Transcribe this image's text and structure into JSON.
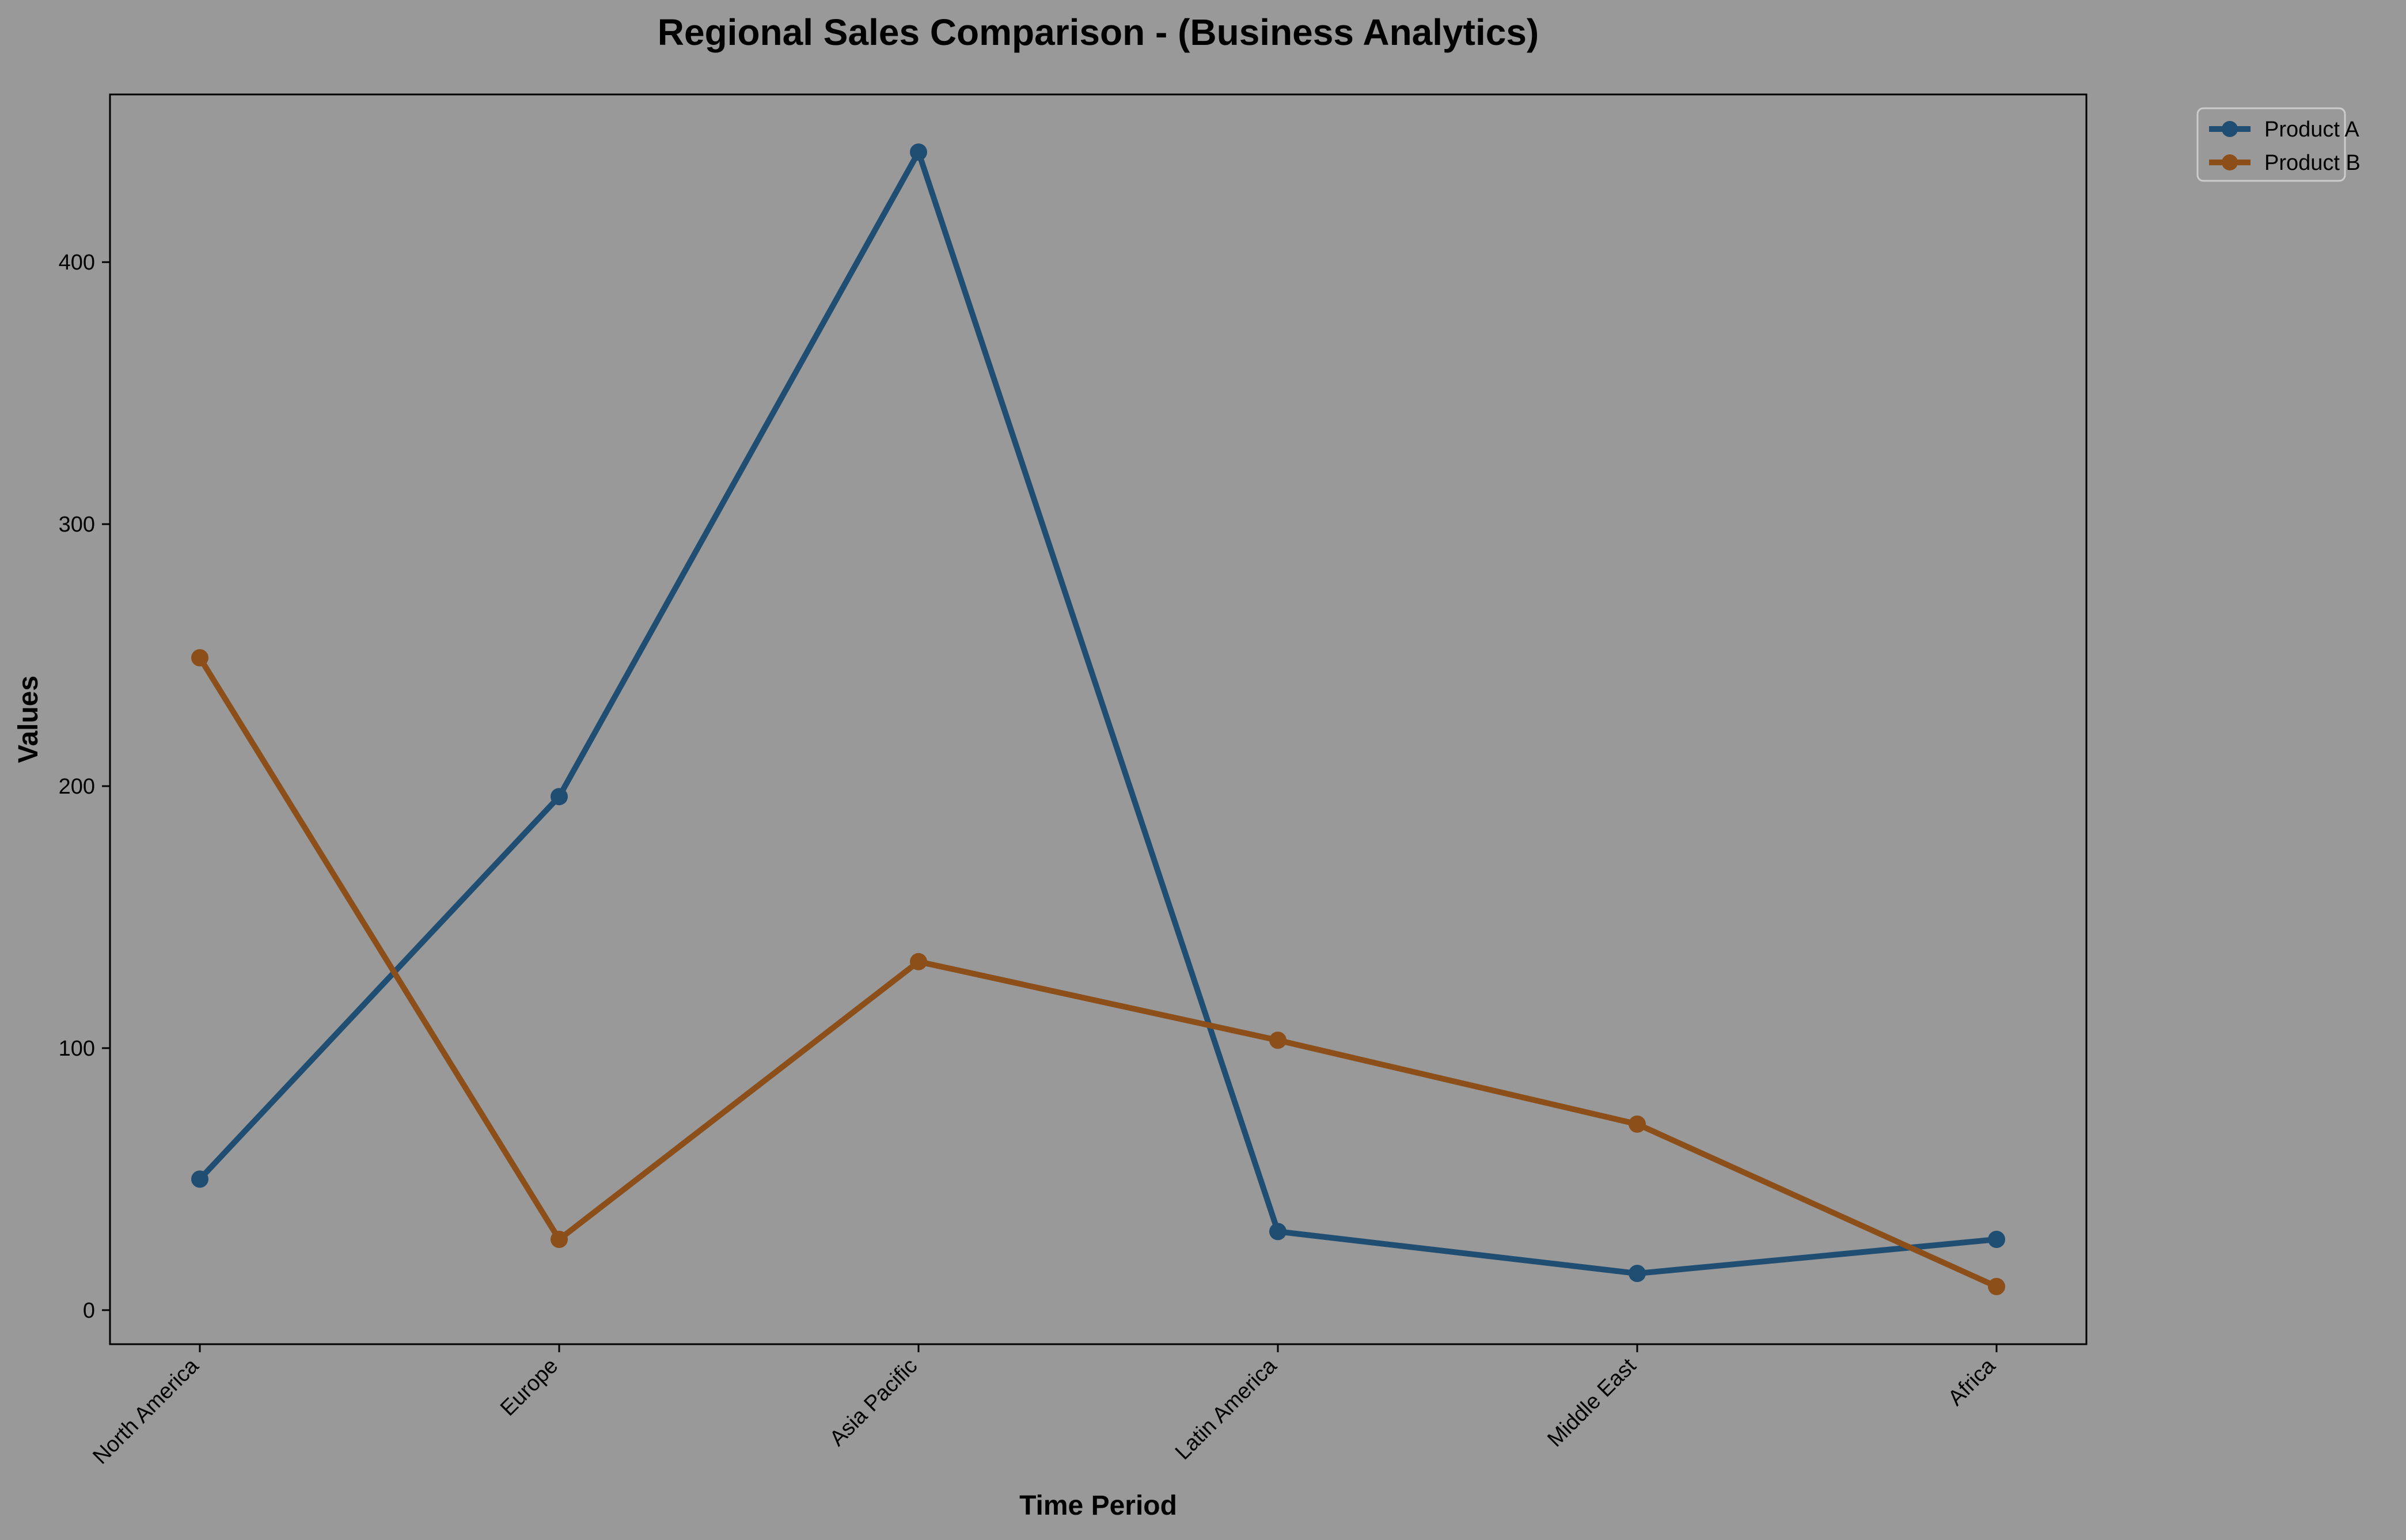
{
  "chart_data": {
    "type": "line",
    "title": "Regional Sales Comparison - (Business Analytics)",
    "xlabel": "Time Period",
    "ylabel": "Values",
    "categories": [
      "North America",
      "Europe",
      "Asia Pacific",
      "Latin America",
      "Middle East",
      "Africa"
    ],
    "series": [
      {
        "name": "Product A",
        "color": "#1f4e72",
        "values": [
          50,
          196,
          442,
          30,
          14,
          27
        ]
      },
      {
        "name": "Product B",
        "color": "#8c4f1a",
        "values": [
          249,
          27,
          133,
          103,
          71,
          9
        ]
      }
    ],
    "ylim": [
      -13,
      464
    ],
    "yticks": [
      0,
      100,
      200,
      300,
      400
    ],
    "grid": false,
    "legend_position": "upper-right-outside",
    "background_color": "#999999",
    "plot_background_color": "#999999"
  }
}
